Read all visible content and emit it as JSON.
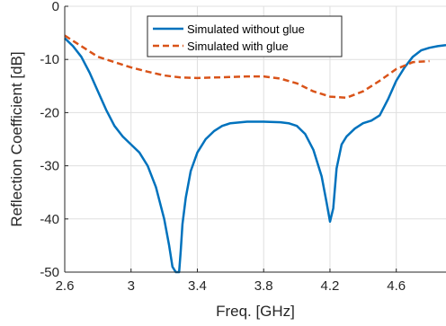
{
  "chart_data": {
    "type": "line",
    "xlabel": "Freq. [GHz]",
    "ylabel": "Reflection Coefficient [dB]",
    "xlim": [
      2.6,
      4.9
    ],
    "ylim": [
      -50,
      0
    ],
    "xticks": [
      2.6,
      3,
      3.4,
      3.8,
      4.2,
      4.6
    ],
    "xtick_labels": [
      "2.6",
      "3",
      "3.4",
      "3.8",
      "4.2",
      "4.6"
    ],
    "yticks": [
      0,
      -10,
      -20,
      -30,
      -40,
      -50
    ],
    "ytick_labels": [
      "0",
      "-10",
      "-20",
      "-30",
      "-40",
      "-50"
    ],
    "grid": true,
    "legend_position": "top-center",
    "series": [
      {
        "name": "Simulated without glue",
        "color": "#0072BD",
        "style": "solid",
        "x": [
          2.6,
          2.65,
          2.7,
          2.75,
          2.8,
          2.85,
          2.9,
          2.95,
          3.0,
          3.05,
          3.1,
          3.15,
          3.2,
          3.23,
          3.25,
          3.27,
          3.28,
          3.29,
          3.3,
          3.31,
          3.33,
          3.36,
          3.4,
          3.45,
          3.5,
          3.55,
          3.6,
          3.7,
          3.8,
          3.9,
          3.95,
          4.0,
          4.05,
          4.1,
          4.15,
          4.18,
          4.2,
          4.22,
          4.24,
          4.27,
          4.3,
          4.35,
          4.4,
          4.45,
          4.5,
          4.55,
          4.6,
          4.65,
          4.7,
          4.75,
          4.8,
          4.85,
          4.9
        ],
        "y": [
          -6,
          -7.5,
          -9.5,
          -12.5,
          -16,
          -19.5,
          -22.5,
          -24.5,
          -26,
          -27.5,
          -30,
          -34,
          -40,
          -45,
          -49,
          -50,
          -50,
          -50,
          -46,
          -41,
          -36,
          -31,
          -27.5,
          -25,
          -23.5,
          -22.5,
          -22,
          -21.7,
          -21.7,
          -21.8,
          -22,
          -22.5,
          -24,
          -27,
          -32,
          -37,
          -40.5,
          -38,
          -30.5,
          -26,
          -24.5,
          -23,
          -22,
          -21.5,
          -20.5,
          -17.5,
          -14,
          -11.5,
          -9.5,
          -8.3,
          -7.8,
          -7.5,
          -7.3
        ]
      },
      {
        "name": "Simulated with glue",
        "color": "#D95319",
        "style": "dashed",
        "x": [
          2.6,
          2.7,
          2.8,
          2.9,
          3.0,
          3.1,
          3.2,
          3.3,
          3.4,
          3.5,
          3.6,
          3.7,
          3.8,
          3.9,
          4.0,
          4.1,
          4.2,
          4.3,
          4.4,
          4.5,
          4.6,
          4.7,
          4.8
        ],
        "y": [
          -5.5,
          -7.5,
          -9.5,
          -10.5,
          -11.5,
          -12.3,
          -13,
          -13.4,
          -13.5,
          -13.4,
          -13.3,
          -13.2,
          -13.2,
          -13.6,
          -14.5,
          -16,
          -17,
          -17.2,
          -16,
          -14,
          -11.8,
          -10.5,
          -10.3
        ]
      }
    ]
  }
}
